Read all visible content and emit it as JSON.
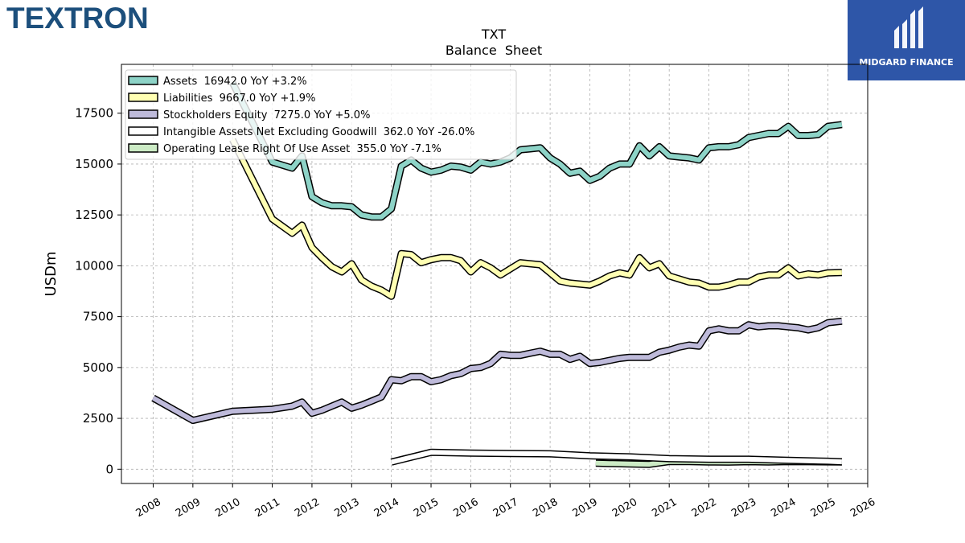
{
  "branding": {
    "company_logo": "TEXTRON",
    "partner_logo": "MIDGARD FINANCE"
  },
  "chart_data": {
    "type": "line",
    "title": "TXT",
    "subtitle": "Balance  Sheet",
    "ylabel": "USDm",
    "xlabel": "",
    "xlim": [
      2007.2,
      2026.0
    ],
    "ylim": [
      -700,
      19900
    ],
    "x_ticks": [
      "2008",
      "2009",
      "2010",
      "2011",
      "2012",
      "2013",
      "2014",
      "2015",
      "2016",
      "2017",
      "2018",
      "2019",
      "2020",
      "2021",
      "2022",
      "2023",
      "2024",
      "2025",
      "2026"
    ],
    "y_ticks": [
      "0",
      "2500",
      "5000",
      "7500",
      "10000",
      "12500",
      "15000",
      "17500"
    ],
    "grid": true,
    "legend_position": "top-left",
    "series": [
      {
        "name": "Assets",
        "legend": "Assets  16942.0 YoY +3.2%",
        "color": "#8dd3c7",
        "points": [
          [
            2010.0,
            19000
          ],
          [
            2011.0,
            15100
          ],
          [
            2011.5,
            14800
          ],
          [
            2011.75,
            15400
          ],
          [
            2012.0,
            13400
          ],
          [
            2012.25,
            13100
          ],
          [
            2012.5,
            12950
          ],
          [
            2012.75,
            12950
          ],
          [
            2013.0,
            12900
          ],
          [
            2013.25,
            12500
          ],
          [
            2013.5,
            12400
          ],
          [
            2013.75,
            12400
          ],
          [
            2014.0,
            12800
          ],
          [
            2014.25,
            14900
          ],
          [
            2014.5,
            15200
          ],
          [
            2014.75,
            14800
          ],
          [
            2015.0,
            14600
          ],
          [
            2015.25,
            14700
          ],
          [
            2015.5,
            14900
          ],
          [
            2015.75,
            14850
          ],
          [
            2016.0,
            14700
          ],
          [
            2016.25,
            15100
          ],
          [
            2016.5,
            15000
          ],
          [
            2016.75,
            15100
          ],
          [
            2017.0,
            15300
          ],
          [
            2017.25,
            15700
          ],
          [
            2017.5,
            15750
          ],
          [
            2017.75,
            15800
          ],
          [
            2018.0,
            15300
          ],
          [
            2018.25,
            15000
          ],
          [
            2018.5,
            14550
          ],
          [
            2018.75,
            14650
          ],
          [
            2019.0,
            14200
          ],
          [
            2019.25,
            14400
          ],
          [
            2019.5,
            14800
          ],
          [
            2019.75,
            15000
          ],
          [
            2020.0,
            15000
          ],
          [
            2020.25,
            15900
          ],
          [
            2020.5,
            15400
          ],
          [
            2020.75,
            15850
          ],
          [
            2021.0,
            15400
          ],
          [
            2021.25,
            15350
          ],
          [
            2021.5,
            15300
          ],
          [
            2021.75,
            15200
          ],
          [
            2022.0,
            15800
          ],
          [
            2022.25,
            15850
          ],
          [
            2022.5,
            15850
          ],
          [
            2022.75,
            15950
          ],
          [
            2023.0,
            16300
          ],
          [
            2023.25,
            16400
          ],
          [
            2023.5,
            16500
          ],
          [
            2023.75,
            16500
          ],
          [
            2024.0,
            16850
          ],
          [
            2024.25,
            16400
          ],
          [
            2024.5,
            16400
          ],
          [
            2024.75,
            16450
          ],
          [
            2025.0,
            16850
          ],
          [
            2025.35,
            16942
          ]
        ]
      },
      {
        "name": "Liabilities",
        "legend": "Liabilities  9667.0 YoY +1.9%",
        "color": "#ffffb3",
        "points": [
          [
            2010.0,
            16200
          ],
          [
            2011.0,
            12300
          ],
          [
            2011.5,
            11600
          ],
          [
            2011.75,
            12000
          ],
          [
            2012.0,
            10900
          ],
          [
            2012.25,
            10400
          ],
          [
            2012.5,
            9950
          ],
          [
            2012.75,
            9700
          ],
          [
            2013.0,
            10100
          ],
          [
            2013.25,
            9300
          ],
          [
            2013.5,
            9000
          ],
          [
            2013.75,
            8800
          ],
          [
            2014.0,
            8500
          ],
          [
            2014.25,
            10600
          ],
          [
            2014.5,
            10550
          ],
          [
            2014.75,
            10150
          ],
          [
            2015.0,
            10300
          ],
          [
            2015.25,
            10400
          ],
          [
            2015.5,
            10400
          ],
          [
            2015.75,
            10250
          ],
          [
            2016.0,
            9700
          ],
          [
            2016.25,
            10150
          ],
          [
            2016.5,
            9900
          ],
          [
            2016.75,
            9550
          ],
          [
            2017.0,
            9850
          ],
          [
            2017.25,
            10150
          ],
          [
            2017.5,
            10100
          ],
          [
            2017.75,
            10050
          ],
          [
            2018.0,
            9650
          ],
          [
            2018.25,
            9250
          ],
          [
            2018.5,
            9150
          ],
          [
            2018.75,
            9100
          ],
          [
            2019.0,
            9050
          ],
          [
            2019.25,
            9250
          ],
          [
            2019.5,
            9500
          ],
          [
            2019.75,
            9650
          ],
          [
            2020.0,
            9550
          ],
          [
            2020.25,
            10400
          ],
          [
            2020.5,
            9900
          ],
          [
            2020.75,
            10100
          ],
          [
            2021.0,
            9500
          ],
          [
            2021.25,
            9350
          ],
          [
            2021.5,
            9200
          ],
          [
            2021.75,
            9150
          ],
          [
            2022.0,
            8950
          ],
          [
            2022.25,
            8950
          ],
          [
            2022.5,
            9050
          ],
          [
            2022.75,
            9200
          ],
          [
            2023.0,
            9200
          ],
          [
            2023.25,
            9450
          ],
          [
            2023.5,
            9550
          ],
          [
            2023.75,
            9550
          ],
          [
            2024.0,
            9900
          ],
          [
            2024.25,
            9500
          ],
          [
            2024.5,
            9600
          ],
          [
            2024.75,
            9550
          ],
          [
            2025.0,
            9650
          ],
          [
            2025.35,
            9667
          ]
        ]
      },
      {
        "name": "Stockholders Equity",
        "legend": "Stockholders Equity  7275.0 YoY +5.0%",
        "color": "#bebada",
        "points": [
          [
            2008.0,
            3500
          ],
          [
            2009.0,
            2400
          ],
          [
            2010.0,
            2850
          ],
          [
            2011.0,
            2950
          ],
          [
            2011.5,
            3100
          ],
          [
            2011.75,
            3300
          ],
          [
            2012.0,
            2750
          ],
          [
            2012.25,
            2900
          ],
          [
            2012.5,
            3100
          ],
          [
            2012.75,
            3300
          ],
          [
            2013.0,
            3000
          ],
          [
            2013.25,
            3150
          ],
          [
            2013.5,
            3350
          ],
          [
            2013.75,
            3550
          ],
          [
            2014.0,
            4400
          ],
          [
            2014.25,
            4350
          ],
          [
            2014.5,
            4550
          ],
          [
            2014.75,
            4550
          ],
          [
            2015.0,
            4300
          ],
          [
            2015.25,
            4400
          ],
          [
            2015.5,
            4600
          ],
          [
            2015.75,
            4700
          ],
          [
            2016.0,
            4950
          ],
          [
            2016.25,
            5000
          ],
          [
            2016.5,
            5200
          ],
          [
            2016.75,
            5650
          ],
          [
            2017.0,
            5600
          ],
          [
            2017.25,
            5600
          ],
          [
            2017.5,
            5700
          ],
          [
            2017.75,
            5800
          ],
          [
            2018.0,
            5650
          ],
          [
            2018.25,
            5650
          ],
          [
            2018.5,
            5400
          ],
          [
            2018.75,
            5550
          ],
          [
            2019.0,
            5200
          ],
          [
            2019.25,
            5250
          ],
          [
            2019.5,
            5350
          ],
          [
            2019.75,
            5450
          ],
          [
            2020.0,
            5500
          ],
          [
            2020.25,
            5500
          ],
          [
            2020.5,
            5500
          ],
          [
            2020.75,
            5750
          ],
          [
            2021.0,
            5850
          ],
          [
            2021.25,
            6000
          ],
          [
            2021.5,
            6100
          ],
          [
            2021.75,
            6050
          ],
          [
            2022.0,
            6800
          ],
          [
            2022.25,
            6900
          ],
          [
            2022.5,
            6800
          ],
          [
            2022.75,
            6800
          ],
          [
            2023.0,
            7100
          ],
          [
            2023.25,
            7000
          ],
          [
            2023.5,
            7050
          ],
          [
            2023.75,
            7050
          ],
          [
            2024.0,
            7000
          ],
          [
            2024.25,
            6950
          ],
          [
            2024.5,
            6850
          ],
          [
            2024.75,
            6950
          ],
          [
            2025.0,
            7200
          ],
          [
            2025.35,
            7275
          ]
        ]
      },
      {
        "name": "Intangible Assets Net Excluding Goodwill",
        "legend": "Intangible Assets Net Excluding Goodwill  362.0 YoY -26.0%",
        "color": "#ffffff",
        "points": [
          [
            2014.0,
            350
          ],
          [
            2015.0,
            830
          ],
          [
            2016.0,
            790
          ],
          [
            2017.0,
            770
          ],
          [
            2018.0,
            760
          ],
          [
            2019.0,
            660
          ],
          [
            2020.0,
            610
          ],
          [
            2021.0,
            520
          ],
          [
            2022.0,
            490
          ],
          [
            2023.0,
            490
          ],
          [
            2024.0,
            440
          ],
          [
            2025.0,
            390
          ],
          [
            2025.35,
            362
          ]
        ]
      },
      {
        "name": "Operating Lease Right Of Use Asset",
        "legend": "Operating Lease Right Of Use Asset  355.0 YoY -7.1%",
        "color": "#ccebc5",
        "points": [
          [
            2019.15,
            300
          ],
          [
            2019.5,
            280
          ],
          [
            2020.0,
            260
          ],
          [
            2020.5,
            240
          ],
          [
            2021.0,
            380
          ],
          [
            2021.5,
            380
          ],
          [
            2022.0,
            360
          ],
          [
            2022.5,
            350
          ],
          [
            2023.0,
            370
          ],
          [
            2023.5,
            360
          ],
          [
            2024.0,
            380
          ],
          [
            2024.5,
            370
          ],
          [
            2025.0,
            365
          ],
          [
            2025.35,
            355
          ]
        ]
      }
    ]
  }
}
